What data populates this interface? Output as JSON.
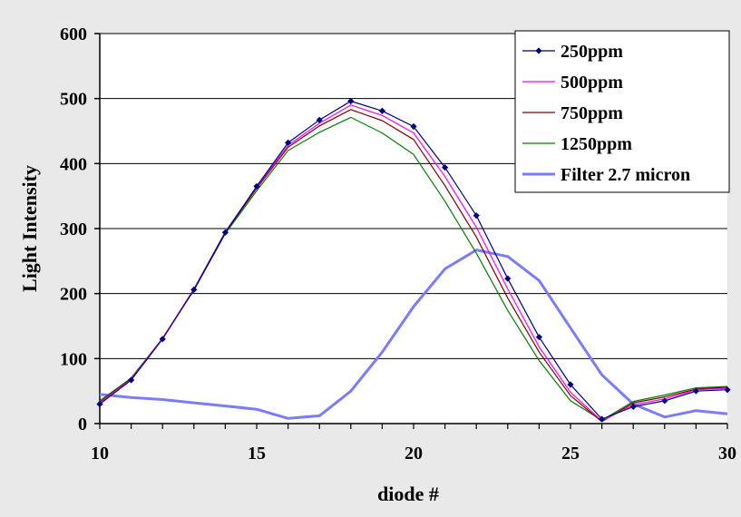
{
  "chart_data": {
    "type": "line",
    "xlabel": "diode #",
    "ylabel": "Light Intensity",
    "xlim": [
      10,
      30
    ],
    "ylim": [
      0,
      600
    ],
    "x_ticks": [
      10,
      15,
      20,
      25,
      30
    ],
    "y_ticks": [
      0,
      100,
      200,
      300,
      400,
      500,
      600
    ],
    "grid": "horizontal",
    "legend_position": "top-right",
    "x": [
      10,
      11,
      12,
      13,
      14,
      15,
      16,
      17,
      18,
      19,
      20,
      21,
      22,
      23,
      24,
      25,
      26,
      27,
      28,
      29,
      30
    ],
    "series": [
      {
        "name": "250ppm",
        "color": "#000080",
        "marker": "diamond",
        "values": [
          30,
          67,
          130,
          206,
          294,
          365,
          432,
          467,
          496,
          481,
          457,
          394,
          320,
          223,
          133,
          60,
          7,
          26,
          35,
          50,
          52
        ]
      },
      {
        "name": "500ppm",
        "color": "#ff00ff",
        "marker": "none",
        "values": [
          32,
          68,
          131,
          207,
          295,
          364,
          428,
          462,
          490,
          474,
          447,
          380,
          302,
          207,
          118,
          48,
          4,
          29,
          38,
          52,
          54
        ]
      },
      {
        "name": "750ppm",
        "color": "#800000",
        "marker": "none",
        "values": [
          33,
          69,
          131,
          206,
          294,
          362,
          425,
          458,
          483,
          466,
          437,
          366,
          287,
          193,
          110,
          43,
          3,
          32,
          41,
          53,
          56
        ]
      },
      {
        "name": "1250ppm",
        "color": "#008000",
        "marker": "none",
        "values": [
          35,
          70,
          131,
          205,
          292,
          358,
          420,
          448,
          471,
          447,
          414,
          342,
          262,
          174,
          97,
          35,
          5,
          34,
          44,
          55,
          57
        ]
      },
      {
        "name": "Filter 2.7 micron",
        "color": "#7b7bff",
        "marker": "none",
        "values": [
          45,
          40,
          37,
          32,
          27,
          22,
          8,
          12,
          50,
          110,
          180,
          238,
          267,
          257,
          220,
          147,
          75,
          30,
          10,
          20,
          15
        ]
      }
    ]
  }
}
